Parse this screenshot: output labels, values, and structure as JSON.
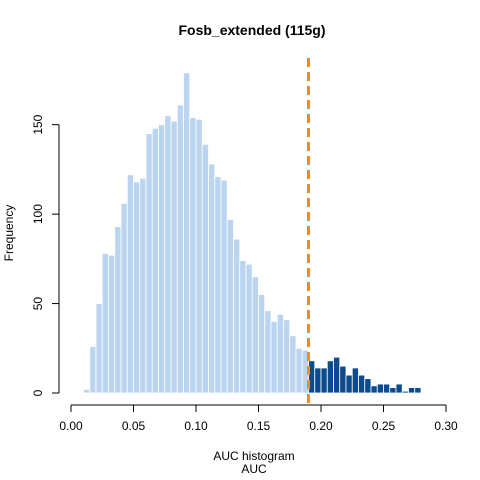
{
  "chart_data": {
    "type": "histogram",
    "title": "Fosb_extended (115g)",
    "xlabel": "AUC",
    "xlabel_top": "AUC histogram",
    "ylabel": "Frequency",
    "xlim": [
      0.0,
      0.3
    ],
    "ylim": [
      0,
      180
    ],
    "x_ticks": [
      "0.00",
      "0.05",
      "0.10",
      "0.15",
      "0.20",
      "0.25",
      "0.30"
    ],
    "x_tick_values": [
      0.0,
      0.05,
      0.1,
      0.15,
      0.2,
      0.25,
      0.3
    ],
    "y_ticks": [
      "0",
      "50",
      "100",
      "150"
    ],
    "y_tick_values": [
      0,
      50,
      100,
      150
    ],
    "bin_width": 0.005,
    "bin_start": 0.0,
    "values": [
      0,
      0,
      2,
      26,
      50,
      78,
      77,
      93,
      106,
      122,
      118,
      120,
      145,
      148,
      150,
      155,
      152,
      161,
      179,
      154,
      153,
      139,
      128,
      121,
      119,
      97,
      86,
      74,
      72,
      65,
      55,
      46,
      40,
      44,
      41,
      32,
      25,
      24,
      18,
      14,
      14,
      18,
      20,
      15,
      10,
      14,
      10,
      8,
      4,
      5,
      5,
      3,
      5,
      1,
      3,
      3,
      0,
      0,
      0,
      0,
      0
    ],
    "threshold": 0.19,
    "threshold_color": "#f58a1f",
    "bar_color_below": "#bbd5f0",
    "bar_color_above": "#0b4b8e",
    "grid": false
  }
}
